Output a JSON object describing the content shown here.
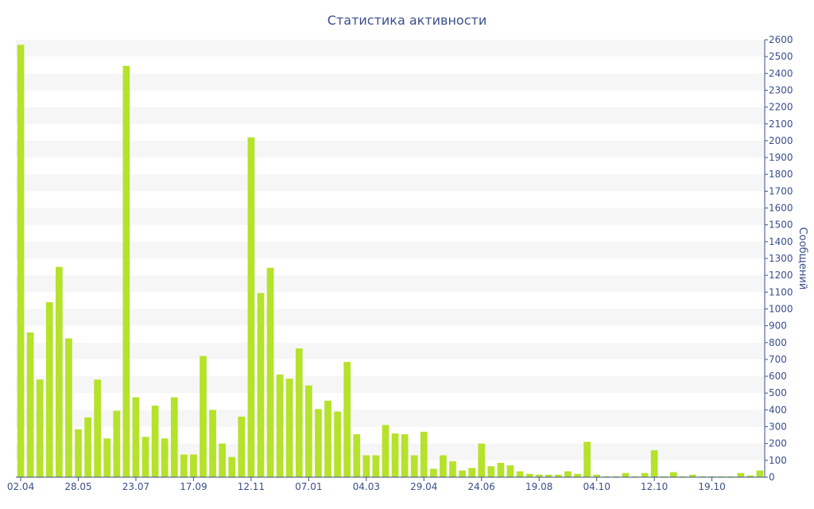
{
  "chart_data": {
    "type": "bar",
    "title": "Статистика активности",
    "ylabel": "Сообщений",
    "xlabel": "",
    "ylim": [
      0,
      2600
    ],
    "y_ticks": [
      0,
      100,
      200,
      300,
      400,
      500,
      600,
      700,
      800,
      900,
      1000,
      1100,
      1200,
      1300,
      1400,
      1500,
      1600,
      1700,
      1800,
      1900,
      2000,
      2100,
      2200,
      2300,
      2400,
      2500,
      2600
    ],
    "x_tick_labels": [
      {
        "index": 0,
        "label": "02.04"
      },
      {
        "index": 6,
        "label": "28.05"
      },
      {
        "index": 12,
        "label": "23.07"
      },
      {
        "index": 18,
        "label": "17.09"
      },
      {
        "index": 24,
        "label": "12.11"
      },
      {
        "index": 30,
        "label": "07.01"
      },
      {
        "index": 36,
        "label": "04.03"
      },
      {
        "index": 42,
        "label": "29.04"
      },
      {
        "index": 48,
        "label": "24.06"
      },
      {
        "index": 54,
        "label": "19.08"
      },
      {
        "index": 60,
        "label": "04.10"
      },
      {
        "index": 66,
        "label": "12.10"
      },
      {
        "index": 72,
        "label": "19.10"
      }
    ],
    "values": [
      2570,
      860,
      580,
      1040,
      1250,
      825,
      285,
      355,
      580,
      230,
      395,
      2445,
      475,
      240,
      425,
      230,
      475,
      135,
      135,
      720,
      400,
      200,
      120,
      360,
      2020,
      1095,
      1245,
      610,
      585,
      765,
      545,
      405,
      455,
      390,
      685,
      255,
      130,
      130,
      310,
      260,
      255,
      130,
      270,
      50,
      130,
      95,
      40,
      55,
      200,
      65,
      85,
      70,
      35,
      20,
      15,
      15,
      15,
      35,
      20,
      210,
      15,
      5,
      5,
      25,
      5,
      25,
      160,
      5,
      30,
      5,
      15,
      5,
      5,
      5,
      5,
      25,
      10,
      40
    ],
    "bar_color": "#b5e22a",
    "axis_color": "#3a4f8c",
    "grid": "horizontal alternating bands"
  }
}
